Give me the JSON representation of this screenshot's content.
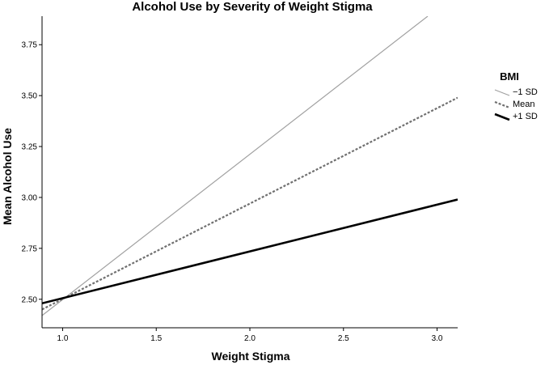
{
  "chart_data": {
    "type": "line",
    "title": "Alcohol Use by Severity of Weight Stigma",
    "xlabel": "Weight Stigma",
    "ylabel": "Mean Alcohol Use",
    "xlim": [
      0.89,
      3.11
    ],
    "ylim": [
      2.36,
      3.89
    ],
    "x_ticks": [
      1.0,
      1.5,
      2.0,
      2.5,
      3.0
    ],
    "x_tick_labels": [
      "1.0",
      "1.5",
      "2.0",
      "2.5",
      "3.0"
    ],
    "y_ticks": [
      2.5,
      2.75,
      3.0,
      3.25,
      3.5,
      3.75
    ],
    "y_tick_labels": [
      "2.50",
      "2.75",
      "3.00",
      "3.25",
      "3.50",
      "3.75"
    ],
    "grid": false,
    "legend": {
      "title": "BMI",
      "position": "right"
    },
    "series": [
      {
        "name": "−1 SD",
        "color": "#a0a0a0",
        "style": "solid-thin",
        "x": [
          0.89,
          2.95
        ],
        "y": [
          2.42,
          3.89
        ]
      },
      {
        "name": "Mean",
        "color": "#707070",
        "style": "dashed",
        "x": [
          0.89,
          3.11
        ],
        "y": [
          2.45,
          3.49
        ]
      },
      {
        "name": "+1 SD",
        "color": "#000000",
        "style": "solid-thick",
        "x": [
          0.89,
          3.11
        ],
        "y": [
          2.48,
          2.99
        ]
      }
    ]
  }
}
